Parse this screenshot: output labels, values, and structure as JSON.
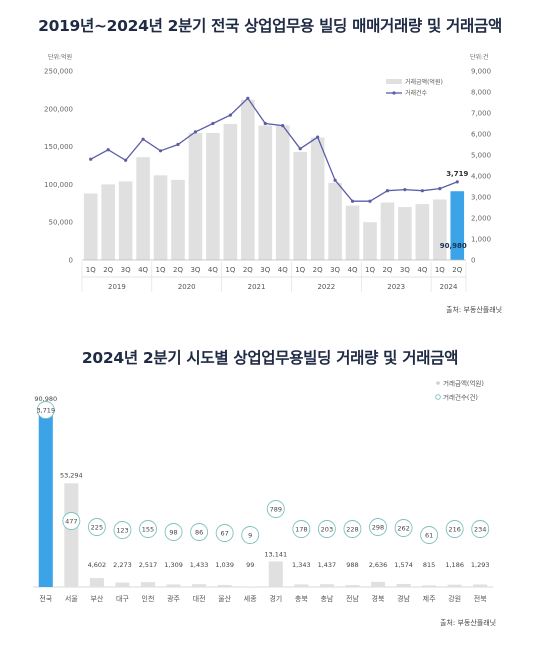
{
  "charts": {
    "top": {
      "title": "2019년~2024년 2분기 전국 상업업무용 빌딩 매매거래량 및 거래금액",
      "source": "출처: 부동산플래닛"
    },
    "bottom": {
      "title": "2024년 2분기 시도별 상업업무용빌딩 거래량 및 거래금액",
      "source": "출처: 부동산플래닛"
    }
  },
  "colors": {
    "bar": "#e0e0e0",
    "bar_highlight": "#3ba3e8",
    "line": "#5b5ea6",
    "circle": "#7fc2c0",
    "title": "#1f2a44"
  },
  "chart_data": [
    {
      "type": "bar",
      "title": "2019년~2024년 2분기 전국 상업업무용 빌딩 매매거래량 및 거래금액",
      "categories": [
        "1Q",
        "2Q",
        "3Q",
        "4Q",
        "1Q",
        "2Q",
        "3Q",
        "4Q",
        "1Q",
        "2Q",
        "3Q",
        "4Q",
        "1Q",
        "2Q",
        "3Q",
        "4Q",
        "1Q",
        "2Q",
        "3Q",
        "4Q",
        "1Q",
        "2Q"
      ],
      "years": [
        "2019",
        "2020",
        "2021",
        "2022",
        "2023",
        "2024"
      ],
      "left_unit": "단위:억원",
      "right_unit": "단위:건",
      "ylim_left": [
        0,
        250000
      ],
      "ylim_right": [
        0,
        9000
      ],
      "left_ticks": [
        "250,000",
        "200,000",
        "150,000",
        "100,000",
        "50,000",
        "0"
      ],
      "right_ticks": [
        "9,000",
        "8,000",
        "7,000",
        "6,000",
        "5,000",
        "4,000",
        "3,000",
        "2,000",
        "1,000",
        "0"
      ],
      "series": [
        {
          "name": "거래금액(억원)",
          "kind": "bar",
          "values": [
            88000,
            100000,
            104000,
            136000,
            112000,
            106000,
            168000,
            168000,
            180000,
            212000,
            178000,
            178000,
            143000,
            162000,
            102000,
            72000,
            50000,
            76000,
            70000,
            74000,
            80000,
            90980
          ]
        },
        {
          "name": "거래건수",
          "kind": "line",
          "values": [
            4800,
            5250,
            4750,
            5750,
            5200,
            5500,
            6100,
            6500,
            6900,
            7700,
            6500,
            6400,
            5300,
            5850,
            3800,
            2800,
            2800,
            3300,
            3350,
            3300,
            3400,
            3719
          ]
        }
      ],
      "annotations": {
        "last_bar": "90,980",
        "last_line": "3,719"
      }
    },
    {
      "type": "bar",
      "title": "2024년 2분기 시도별 상업업무용빌딩 거래량 및 거래금액",
      "categories": [
        "전국",
        "서울",
        "부산",
        "대구",
        "인천",
        "광주",
        "대전",
        "울산",
        "세종",
        "경기",
        "충북",
        "충남",
        "전남",
        "경북",
        "경남",
        "제주",
        "강원",
        "전북"
      ],
      "series": [
        {
          "name": "거래금액(억원)",
          "kind": "bar",
          "values": [
            90980,
            53294,
            4602,
            2273,
            2517,
            1309,
            1433,
            1039,
            99,
            13141,
            1343,
            1437,
            988,
            2636,
            1574,
            815,
            1186,
            1293
          ],
          "labels": [
            "90,980",
            "53,294",
            "4,602",
            "2,273",
            "2,517",
            "1,309",
            "1,433",
            "1,039",
            "99",
            "13,141",
            "1,343",
            "1,437",
            "988",
            "2,636",
            "1,574",
            "815",
            "1,186",
            "1,293"
          ]
        },
        {
          "name": "거래건수(건)",
          "kind": "circle",
          "values": [
            3719,
            477,
            225,
            123,
            155,
            98,
            86,
            67,
            9,
            789,
            178,
            203,
            228,
            298,
            262,
            61,
            216,
            234
          ],
          "labels": [
            "3,719",
            "477",
            "225",
            "123",
            "155",
            "98",
            "86",
            "67",
            "9",
            "789",
            "178",
            "203",
            "228",
            "298",
            "262",
            "61",
            "216",
            "234"
          ]
        }
      ]
    }
  ]
}
